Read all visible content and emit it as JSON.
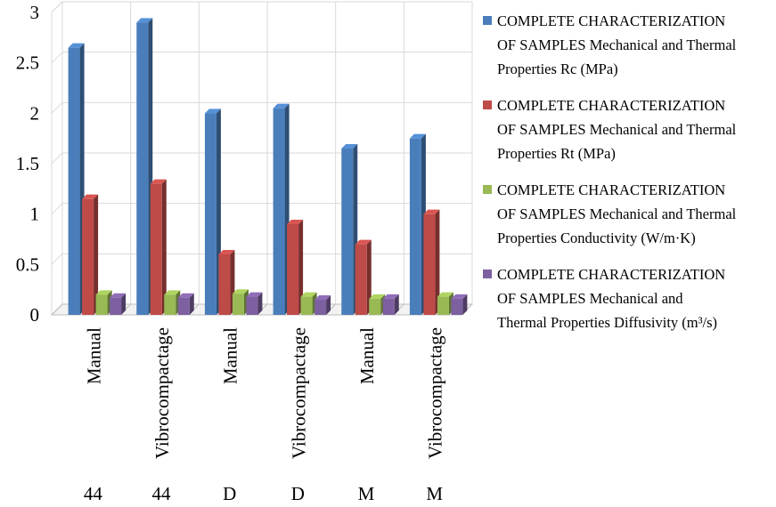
{
  "chart_data": {
    "type": "bar",
    "title": "",
    "xlabel": "",
    "ylabel": "",
    "ylim": [
      0,
      3
    ],
    "yticks": [
      "0",
      "0.5",
      "1",
      "1.5",
      "2",
      "2.5",
      "3"
    ],
    "grid": true,
    "legend_position": "right",
    "categories": [
      {
        "label": "Manual",
        "group": "44"
      },
      {
        "label": "Vibrocompactage",
        "group": "44"
      },
      {
        "label": "Manual",
        "group": "D"
      },
      {
        "label": "Vibrocompactage",
        "group": "D"
      },
      {
        "label": "Manual",
        "group": "M"
      },
      {
        "label": "Vibrocompactage",
        "group": "M"
      }
    ],
    "series": [
      {
        "name_lines": [
          "COMPLETE CHARACTERIZATION",
          "OF SAMPLES Mechanical and Thermal",
          "Properties Rc (MPa)"
        ],
        "color": "#4A7EBB",
        "values": [
          2.65,
          2.9,
          2.0,
          2.05,
          1.65,
          1.75
        ]
      },
      {
        "name_lines": [
          "COMPLETE CHARACTERIZATION",
          "OF SAMPLES Mechanical and Thermal",
          "Properties Rt (MPa)"
        ],
        "color": "#BE4B48",
        "values": [
          1.15,
          1.3,
          0.6,
          0.9,
          0.7,
          1.0
        ]
      },
      {
        "name_lines": [
          "COMPLETE CHARACTERIZATION",
          "OF SAMPLES Mechanical and Thermal",
          "Properties Conductivity (W/m·K)"
        ],
        "color": "#98B954",
        "values": [
          0.2,
          0.2,
          0.21,
          0.18,
          0.16,
          0.18
        ]
      },
      {
        "name_lines": [
          "COMPLETE CHARACTERIZATION",
          "OF SAMPLES Mechanical and",
          "Thermal Properties Diffusivity (m³/s)"
        ],
        "color": "#7D60A0",
        "values": [
          0.17,
          0.17,
          0.18,
          0.15,
          0.16,
          0.16
        ]
      }
    ]
  }
}
